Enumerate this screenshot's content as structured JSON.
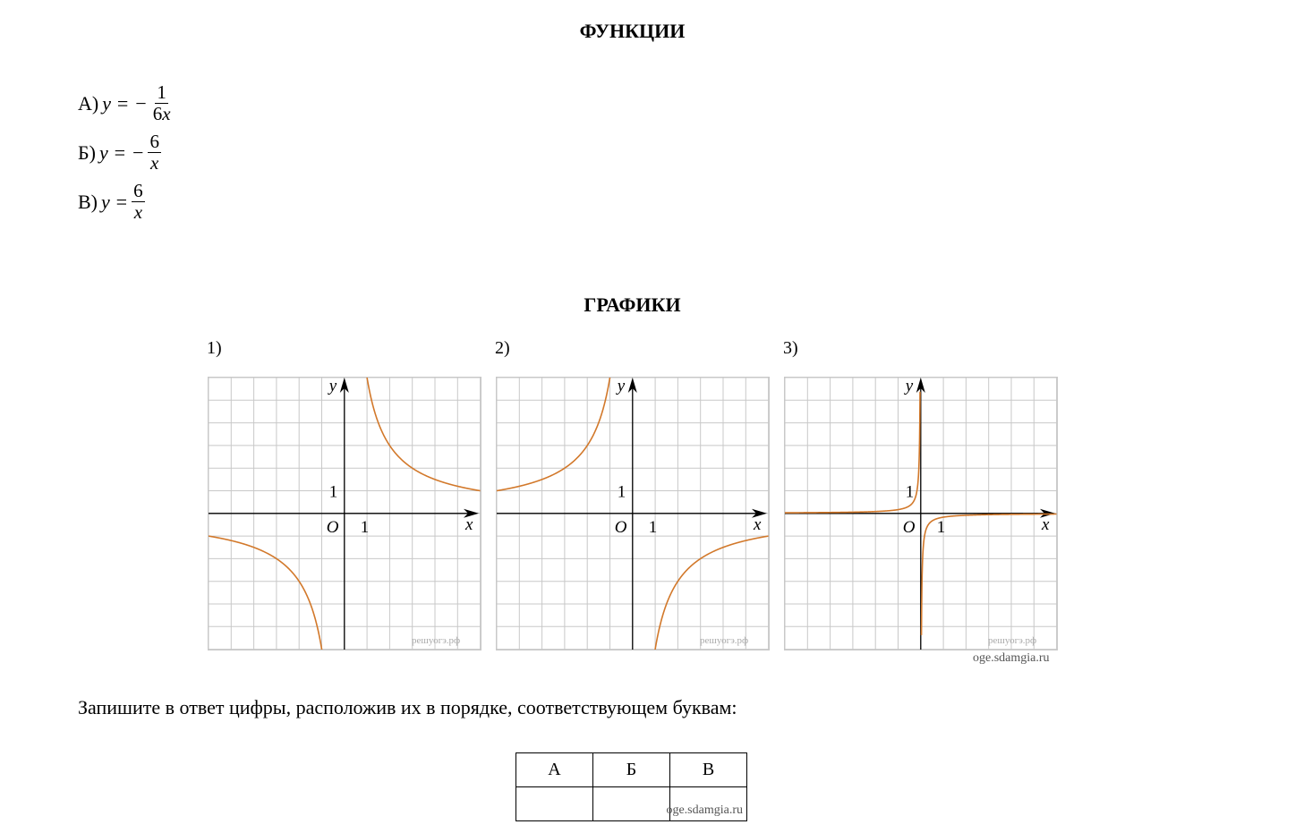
{
  "headings": {
    "functions": "ФУНКЦИИ",
    "graphs": "ГРАФИКИ"
  },
  "functions": [
    {
      "letter": "А)",
      "lhs": "y = −",
      "numerator": "1",
      "denominator_coef": "6",
      "denominator_var": "x"
    },
    {
      "letter": "Б)",
      "lhs": "y = −",
      "numerator": "6",
      "denominator_coef": "",
      "denominator_var": "x"
    },
    {
      "letter": "В)",
      "lhs": "y =",
      "numerator": "6",
      "denominator_coef": "",
      "denominator_var": "x"
    }
  ],
  "graphs": [
    {
      "label": "1)",
      "k": 6,
      "axis_y": "y",
      "axis_x": "x",
      "origin": "O",
      "tick": "1",
      "watermark": "решуогэ.рф",
      "curve_color": "#D2782A"
    },
    {
      "label": "2)",
      "k": -6,
      "axis_y": "y",
      "axis_x": "x",
      "origin": "O",
      "tick": "1",
      "watermark": "решуогэ.рф",
      "curve_color": "#D2782A"
    },
    {
      "label": "3)",
      "k": -0.1667,
      "axis_y": "y",
      "axis_x": "x",
      "origin": "O",
      "tick": "1",
      "watermark": "решуогэ.рф",
      "curve_color": "#D2782A"
    }
  ],
  "source_1": "oge.sdamgia.ru",
  "instruction": "Запишите в ответ цифры, расположив их в порядке, соответствующем буквам:",
  "answer_table": {
    "headers": [
      "А",
      "Б",
      "В"
    ],
    "values": [
      "",
      "",
      ""
    ],
    "source": "oge.sdamgia.ru"
  }
}
